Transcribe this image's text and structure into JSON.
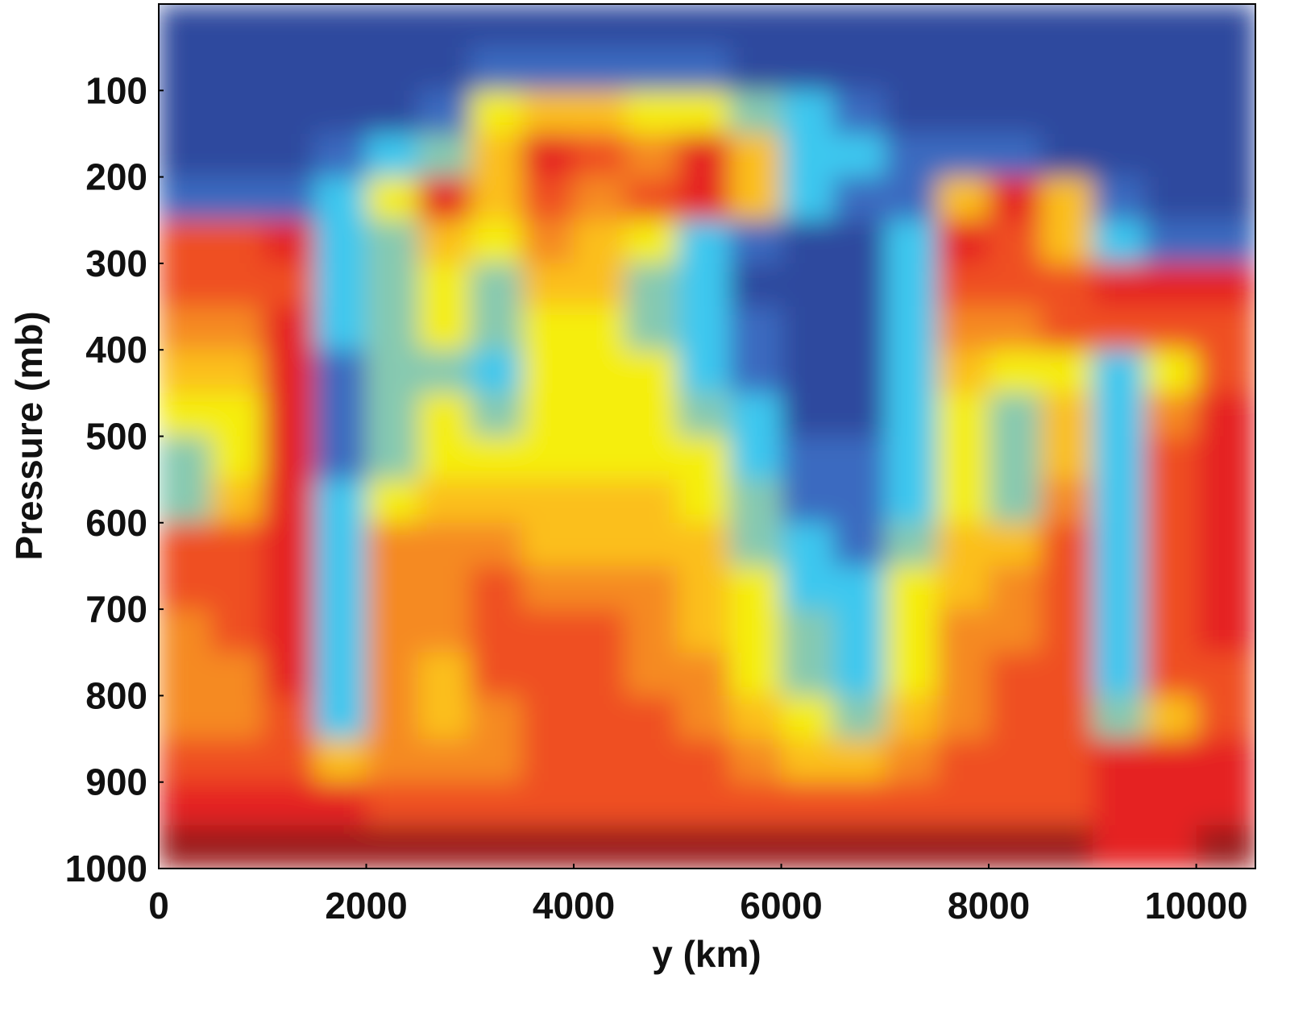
{
  "chart_data": {
    "type": "heatmap",
    "xlabel": "y (km)",
    "ylabel": "Pressure (mb)",
    "xlim": [
      0,
      10570
    ],
    "xticks": [
      0,
      2000,
      4000,
      6000,
      8000,
      10000
    ],
    "ylim": [
      0,
      1000
    ],
    "y_inverted": true,
    "yticks": [
      100,
      200,
      300,
      400,
      500,
      600,
      700,
      800,
      900,
      1000
    ],
    "colormap": [
      "#233b8c",
      "#2e4a9e",
      "#3a6bc0",
      "#3ec8ef",
      "#86c9b0",
      "#f5ee0c",
      "#fbbf1a",
      "#f58a24",
      "#ef4f24",
      "#e52420",
      "#9b1b1b"
    ],
    "x": [
      250,
      750,
      1250,
      1750,
      2250,
      2750,
      3250,
      3750,
      4250,
      4750,
      5250,
      5750,
      6250,
      6750,
      7250,
      7750,
      8250,
      8750,
      9250,
      9750,
      10250
    ],
    "y": [
      25,
      75,
      125,
      175,
      225,
      275,
      325,
      375,
      425,
      475,
      525,
      575,
      625,
      675,
      725,
      775,
      825,
      875,
      925,
      975
    ],
    "z": [
      [
        1,
        1,
        1,
        1,
        1,
        1,
        1,
        1,
        1,
        1,
        1,
        1,
        1,
        1,
        1,
        1,
        1,
        1,
        1,
        1,
        1
      ],
      [
        1,
        1,
        1,
        1,
        1,
        1,
        2,
        2,
        2,
        2,
        2,
        1,
        1,
        1,
        1,
        1,
        1,
        1,
        1,
        1,
        1
      ],
      [
        1,
        1,
        1,
        1,
        1,
        2,
        5,
        6,
        6,
        5,
        5,
        4,
        3,
        2,
        1,
        1,
        1,
        1,
        1,
        1,
        1
      ],
      [
        1,
        1,
        1,
        2,
        3,
        4,
        6,
        9,
        8,
        7,
        9,
        6,
        3,
        3,
        2,
        2,
        2,
        1,
        1,
        1,
        1
      ],
      [
        2,
        2,
        2,
        3,
        5,
        9,
        6,
        8,
        7,
        8,
        9,
        6,
        3,
        2,
        2,
        6,
        9,
        6,
        2,
        1,
        1
      ],
      [
        8,
        8,
        9,
        3,
        4,
        6,
        5,
        7,
        6,
        5,
        3,
        2,
        1,
        1,
        3,
        9,
        8,
        6,
        3,
        2,
        2
      ],
      [
        8,
        8,
        8,
        3,
        4,
        5,
        4,
        6,
        6,
        4,
        3,
        1,
        1,
        1,
        3,
        8,
        8,
        8,
        9,
        9,
        9
      ],
      [
        7,
        7,
        9,
        3,
        4,
        5,
        4,
        5,
        5,
        4,
        3,
        2,
        1,
        1,
        3,
        7,
        7,
        8,
        8,
        8,
        8
      ],
      [
        6,
        6,
        9,
        2,
        4,
        4,
        3,
        5,
        5,
        5,
        3,
        2,
        1,
        1,
        3,
        6,
        5,
        5,
        3,
        5,
        8
      ],
      [
        5,
        5,
        9,
        2,
        4,
        5,
        4,
        5,
        5,
        5,
        4,
        3,
        1,
        1,
        3,
        5,
        4,
        6,
        3,
        7,
        9
      ],
      [
        4,
        5,
        9,
        2,
        4,
        5,
        5,
        5,
        5,
        5,
        5,
        3,
        2,
        2,
        3,
        5,
        4,
        6,
        3,
        8,
        9
      ],
      [
        4,
        6,
        9,
        3,
        5,
        6,
        6,
        6,
        6,
        6,
        5,
        4,
        2,
        2,
        3,
        5,
        4,
        7,
        3,
        8,
        9
      ],
      [
        8,
        8,
        9,
        3,
        7,
        7,
        7,
        6,
        6,
        6,
        6,
        4,
        3,
        2,
        4,
        6,
        6,
        8,
        3,
        8,
        9
      ],
      [
        8,
        8,
        9,
        3,
        7,
        7,
        8,
        7,
        7,
        7,
        6,
        5,
        3,
        3,
        5,
        6,
        7,
        8,
        3,
        8,
        9
      ],
      [
        7,
        8,
        9,
        3,
        7,
        7,
        8,
        8,
        8,
        7,
        6,
        5,
        4,
        3,
        5,
        7,
        7,
        8,
        3,
        8,
        9
      ],
      [
        7,
        7,
        9,
        3,
        7,
        6,
        8,
        8,
        8,
        7,
        7,
        5,
        4,
        3,
        5,
        7,
        8,
        8,
        3,
        8,
        8
      ],
      [
        7,
        7,
        8,
        3,
        7,
        6,
        7,
        8,
        8,
        8,
        7,
        6,
        5,
        4,
        6,
        7,
        8,
        8,
        4,
        6,
        8
      ],
      [
        8,
        8,
        8,
        6,
        7,
        7,
        7,
        8,
        8,
        8,
        8,
        7,
        6,
        6,
        7,
        8,
        8,
        8,
        9,
        9,
        9
      ],
      [
        9,
        9,
        9,
        9,
        8,
        8,
        8,
        8,
        8,
        8,
        8,
        8,
        8,
        8,
        8,
        8,
        8,
        8,
        9,
        9,
        9
      ],
      [
        10,
        10,
        10,
        10,
        10,
        10,
        10,
        10,
        10,
        10,
        10,
        10,
        10,
        10,
        10,
        10,
        10,
        10,
        9,
        9,
        10
      ]
    ]
  }
}
